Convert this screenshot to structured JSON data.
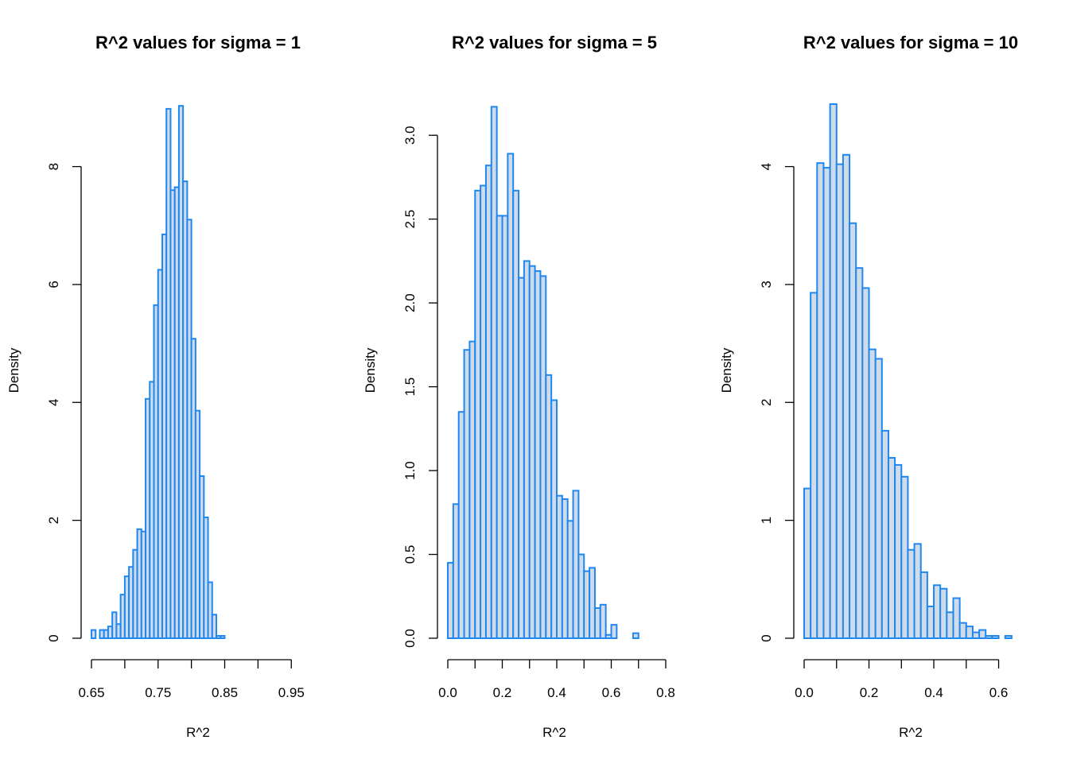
{
  "chart_data": [
    {
      "type": "histogram",
      "title": "R^2 values for sigma = 1",
      "xlabel": "R^2",
      "ylabel": "Density",
      "bin_start": 0.65,
      "bin_width": 0.00625,
      "values": [
        0.14,
        0.0,
        0.14,
        0.14,
        0.2,
        0.44,
        0.24,
        0.74,
        1.05,
        1.21,
        1.5,
        1.85,
        1.81,
        4.06,
        4.35,
        5.65,
        6.25,
        6.85,
        8.98,
        7.6,
        7.65,
        9.03,
        7.75,
        7.1,
        5.08,
        3.86,
        2.75,
        2.05,
        0.95,
        0.4,
        0.04,
        0.04
      ],
      "x_ticks": [
        "0.65",
        "0.75",
        "0.85",
        "0.95"
      ],
      "y_ticks": [
        "0",
        "2",
        "4",
        "6",
        "8"
      ],
      "xlim": [
        0.65,
        0.97
      ],
      "ylim": [
        0,
        9.1
      ],
      "fill": "#cfdbe8",
      "stroke": "#1e88f0"
    },
    {
      "type": "histogram",
      "title": "R^2 values for sigma = 5",
      "xlabel": "R^2",
      "ylabel": "Density",
      "bin_start": 0.0,
      "bin_width": 0.02,
      "values": [
        0.45,
        0.8,
        1.35,
        1.72,
        1.77,
        2.67,
        2.7,
        2.82,
        3.17,
        2.52,
        2.52,
        2.89,
        2.67,
        2.15,
        2.25,
        2.22,
        2.19,
        2.16,
        1.57,
        1.42,
        0.85,
        0.83,
        0.7,
        0.88,
        0.5,
        0.4,
        0.42,
        0.18,
        0.2,
        0.02,
        0.08,
        0.0,
        0.0,
        0.0,
        0.03
      ],
      "x_ticks": [
        "0.0",
        "0.2",
        "0.4",
        "0.6",
        "0.8"
      ],
      "y_ticks": [
        "0.0",
        "0.5",
        "1.0",
        "1.5",
        "2.0",
        "2.5",
        "3.0"
      ],
      "xlim": [
        0.0,
        0.8
      ],
      "ylim": [
        0,
        3.2
      ],
      "fill": "#cfdbe8",
      "stroke": "#1e88f0"
    },
    {
      "type": "histogram",
      "title": "R^2 values for sigma = 10",
      "xlabel": "R^2",
      "ylabel": "Density",
      "bin_start": 0.0,
      "bin_width": 0.02,
      "values": [
        1.27,
        2.93,
        4.03,
        3.99,
        4.53,
        4.02,
        4.1,
        3.52,
        3.14,
        2.97,
        2.45,
        2.37,
        1.76,
        1.53,
        1.47,
        1.37,
        0.75,
        0.8,
        0.56,
        0.27,
        0.45,
        0.42,
        0.22,
        0.34,
        0.13,
        0.1,
        0.05,
        0.07,
        0.02,
        0.02,
        0.0,
        0.02
      ],
      "x_ticks": [
        "0.0",
        "0.2",
        "0.4",
        "0.6"
      ],
      "y_ticks": [
        "0",
        "1",
        "2",
        "3",
        "4"
      ],
      "xlim": [
        0.0,
        0.66
      ],
      "ylim": [
        0,
        4.55
      ],
      "fill": "#cfdbe8",
      "stroke": "#1e88f0"
    }
  ]
}
